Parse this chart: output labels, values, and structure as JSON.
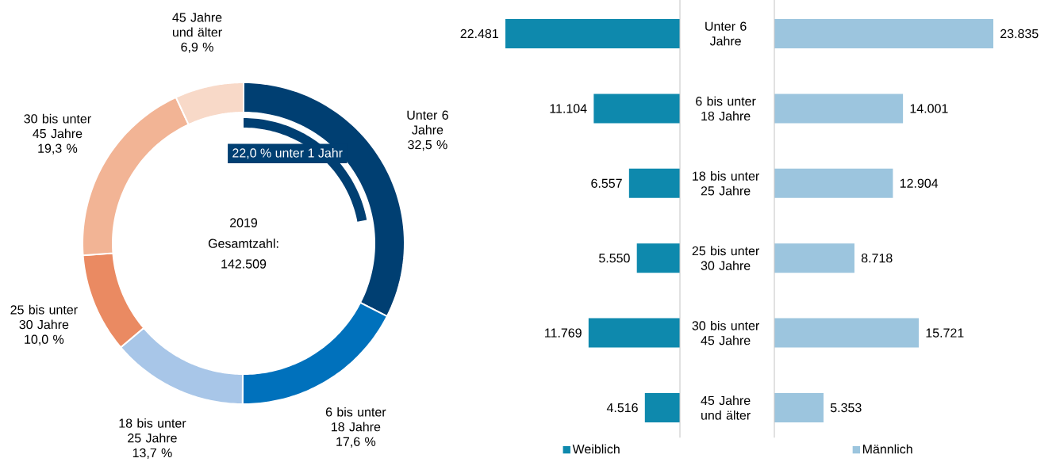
{
  "chart_data": [
    {
      "type": "donut",
      "categories": [
        "Unter 6 Jahre",
        "6 bis unter 18 Jahre",
        "18 bis unter 25 Jahre",
        "25 bis unter 30 Jahre",
        "30 bis unter 45 Jahre",
        "45 Jahre und älter"
      ],
      "values": [
        32.5,
        17.6,
        13.7,
        10.0,
        19.3,
        6.9
      ],
      "value_labels": [
        "32,5 %",
        "17,6 %",
        "13,7 %",
        "10,0 %",
        "19,3 %",
        "6,9 %"
      ],
      "colors": [
        "#003f72",
        "#0071bc",
        "#a8c6e8",
        "#ea8a62",
        "#f2b495",
        "#f8d9c8"
      ],
      "annotations": [
        "2019",
        "Gesamtzahl:",
        "142.509",
        "22,0 % unter 1 Jahr"
      ]
    },
    {
      "type": "bar",
      "orientation": "horizontal",
      "categories": [
        "Unter 6 Jahre",
        "6 bis unter 18 Jahre",
        "18 bis unter 25 Jahre",
        "25 bis unter 30 Jahre",
        "30 bis unter 45 Jahre",
        "45 Jahre und älter"
      ],
      "series": [
        {
          "name": "Weiblich",
          "color": "#0e89ad",
          "values": [
            22481,
            11104,
            6557,
            5550,
            11769,
            4516
          ],
          "value_labels": [
            "22.481",
            "11.104",
            "6.557",
            "5.550",
            "11.769",
            "4.516"
          ]
        }
      ],
      "legend": "bottom"
    },
    {
      "type": "bar",
      "orientation": "horizontal",
      "categories": [
        null,
        null,
        null,
        null,
        null,
        null
      ],
      "series": [
        {
          "name": "Männlich",
          "color": "#9cc5de",
          "values": [
            23835,
            14001,
            12904,
            8718,
            15721,
            5353
          ],
          "value_labels": [
            "23.835",
            "14.001",
            "12.904",
            "8.718",
            "15.721",
            "5.353"
          ]
        }
      ],
      "legend": "bottom"
    }
  ]
}
